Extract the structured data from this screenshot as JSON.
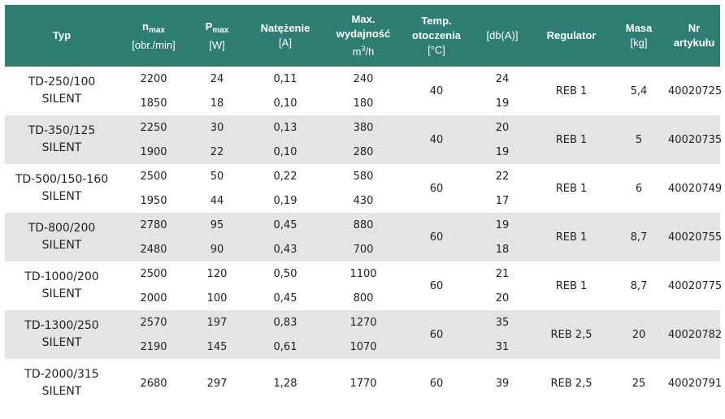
{
  "headers": {
    "typ": "Typ",
    "nmax_main": "n",
    "nmax_sub": "max",
    "nmax_unit": "[obr./min]",
    "pmax_main": "P",
    "pmax_sub": "max",
    "pmax_unit": "[W]",
    "current": "Natężenie",
    "current_unit": "[A]",
    "capacity_line1": "Max.",
    "capacity_line2": "wydajność",
    "capacity_unit_main": "m",
    "capacity_unit_sup": "3",
    "capacity_unit_tail": "/h",
    "temp_line1": "Temp.",
    "temp_line2": "otoczenia",
    "temp_unit": "[°C]",
    "db": "[db(A)]",
    "regulator": "Regulator",
    "mass": "Masa",
    "mass_unit": "[kg]",
    "article_line1": "Nr",
    "article_line2": "artykułu"
  },
  "groups": [
    {
      "typ1": "TD-250/100",
      "typ2": "SILENT",
      "temp": "40",
      "reg": "REB 1",
      "mass": "5,4",
      "art": "40020725",
      "rows": [
        {
          "n": "2200",
          "p": "24",
          "a": "0,11",
          "q": "240",
          "db": "24"
        },
        {
          "n": "1850",
          "p": "18",
          "a": "0,10",
          "q": "180",
          "db": "19"
        }
      ]
    },
    {
      "typ1": "TD-350/125",
      "typ2": "SILENT",
      "temp": "40",
      "reg": "REB 1",
      "mass": "5",
      "art": "40020735",
      "rows": [
        {
          "n": "2250",
          "p": "30",
          "a": "0,13",
          "q": "380",
          "db": "20"
        },
        {
          "n": "1900",
          "p": "22",
          "a": "0,10",
          "q": "280",
          "db": "19"
        }
      ]
    },
    {
      "typ1": "TD-500/150-160",
      "typ2": "SILENT",
      "temp": "60",
      "reg": "REB 1",
      "mass": "6",
      "art": "40020749",
      "rows": [
        {
          "n": "2500",
          "p": "50",
          "a": "0,22",
          "q": "580",
          "db": "22"
        },
        {
          "n": "1950",
          "p": "44",
          "a": "0,19",
          "q": "430",
          "db": "17"
        }
      ]
    },
    {
      "typ1": "TD-800/200",
      "typ2": "SILENT",
      "temp": "60",
      "reg": "REB 1",
      "mass": "8,7",
      "art": "40020755",
      "rows": [
        {
          "n": "2780",
          "p": "95",
          "a": "0,45",
          "q": "880",
          "db": "19"
        },
        {
          "n": "2480",
          "p": "90",
          "a": "0,43",
          "q": "700",
          "db": "18"
        }
      ]
    },
    {
      "typ1": "TD-1000/200",
      "typ2": "SILENT",
      "temp": "60",
      "reg": "REB 1",
      "mass": "8,7",
      "art": "40020775",
      "rows": [
        {
          "n": "2500",
          "p": "120",
          "a": "0,50",
          "q": "1100",
          "db": "21"
        },
        {
          "n": "2000",
          "p": "100",
          "a": "0,45",
          "q": "800",
          "db": "20"
        }
      ]
    },
    {
      "typ1": "TD-1300/250",
      "typ2": "SILENT",
      "temp": "60",
      "reg": "REB 2,5",
      "mass": "20",
      "art": "40020782",
      "rows": [
        {
          "n": "2570",
          "p": "197",
          "a": "0,83",
          "q": "1270",
          "db": "35"
        },
        {
          "n": "2190",
          "p": "145",
          "a": "0,61",
          "q": "1070",
          "db": "31"
        }
      ]
    },
    {
      "typ1": "TD-2000/315",
      "typ2": "SILENT",
      "temp": "60",
      "reg": "REB 2,5",
      "mass": "25",
      "art": "40020791",
      "rows": [
        {
          "n": "2680",
          "p": "297",
          "a": "1,28",
          "q": "1770",
          "db": "39"
        }
      ]
    }
  ]
}
